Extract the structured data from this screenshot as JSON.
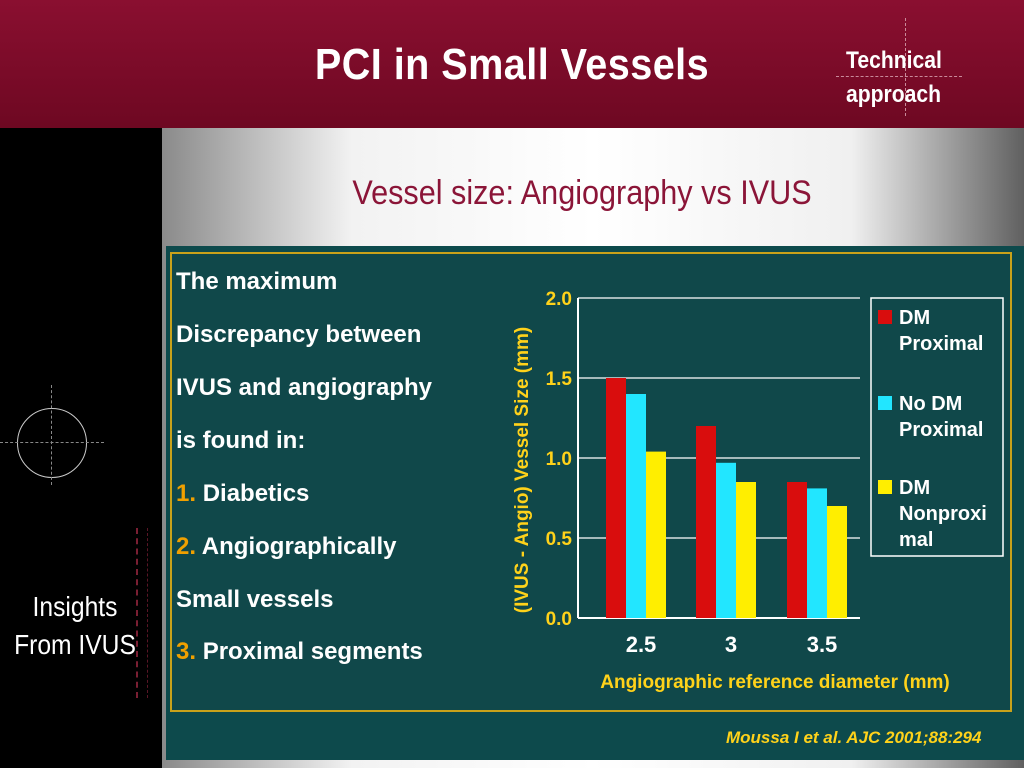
{
  "header": {
    "title": "PCI in Small Vessels",
    "section_line1": "Technical",
    "section_line2": "approach"
  },
  "sidebar": {
    "line1": "Insights",
    "line2": "From IVUS"
  },
  "subtitle": "Vessel size: Angiography vs IVUS",
  "text_lines": [
    "The maximum",
    "Discrepancy between",
    "IVUS and angiography",
    "is found in:"
  ],
  "list_items": [
    {
      "num": "1.",
      "text": "Diabetics"
    },
    {
      "num": "2.",
      "text": "Angiographically"
    },
    {
      "num": "",
      "text": "Small vessels"
    },
    {
      "num": "3.",
      "text": "Proximal segments"
    }
  ],
  "citation": "Moussa I et al. AJC 2001;88:294",
  "colors": {
    "dm_proximal": "#d90d0d",
    "no_dm_proximal": "#22e6ff",
    "dm_nonproximal": "#ffee00",
    "axis_label": "#ffd21a",
    "accent": "#8b1538"
  },
  "chart_data": {
    "type": "bar",
    "categories": [
      "2.5",
      "3",
      "3.5"
    ],
    "series": [
      {
        "name": "DM Proximal",
        "legend_lines": [
          "DM",
          "Proximal"
        ],
        "values": [
          1.5,
          1.2,
          0.85
        ]
      },
      {
        "name": "No DM Proximal",
        "legend_lines": [
          "No DM",
          "Proximal"
        ],
        "values": [
          1.4,
          0.97,
          0.81
        ]
      },
      {
        "name": "DM Nonproximal",
        "legend_lines": [
          "DM",
          "Nonproxi",
          "mal"
        ],
        "values": [
          1.04,
          0.85,
          0.7
        ]
      }
    ],
    "xlabel": "Angiographic reference diameter (mm)",
    "ylabel": "(IVUS - Angio) Vessel Size (mm)",
    "ylim": [
      0,
      2.0
    ],
    "yticks": [
      "0.0",
      "0.5",
      "1.0",
      "1.5",
      "2.0"
    ],
    "grid": true,
    "legend_position": "right"
  }
}
